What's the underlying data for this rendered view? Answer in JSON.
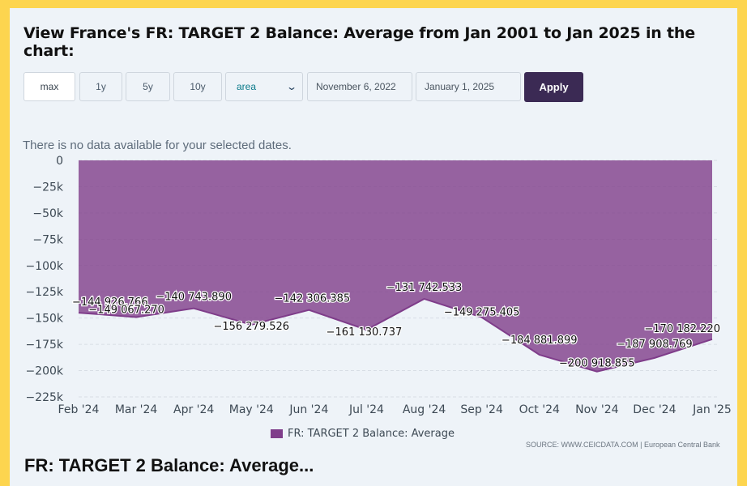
{
  "heading": "View France's FR: TARGET 2 Balance: Average from Jan 2001 to Jan 2025 in the chart:",
  "controls": {
    "range_buttons": [
      "max",
      "1y",
      "5y",
      "10y"
    ],
    "chart_type": "area",
    "start_date": "November 6, 2022",
    "end_date": "January 1, 2025",
    "apply_label": "Apply"
  },
  "no_data_message": "There is no data available for your selected dates.",
  "source_text": "SOURCE: WWW.CEICDATA.COM | European Central Bank",
  "next_section_heading": "FR: TARGET 2 Balance: Average...",
  "colors": {
    "area_fill": "#7f3d8a",
    "apply_button": "#3b2a54",
    "page_border": "#fdd54f"
  },
  "chart_data": {
    "type": "area",
    "title": "",
    "xlabel": "",
    "ylabel": "",
    "ylim": [
      -225000,
      0
    ],
    "yticks": [
      0,
      -25000,
      -50000,
      -75000,
      -100000,
      -125000,
      -150000,
      -175000,
      -200000,
      -225000
    ],
    "ytick_labels": [
      "0",
      "−25k",
      "−50k",
      "−75k",
      "−100k",
      "−125k",
      "−150k",
      "−175k",
      "−200k",
      "−225k"
    ],
    "categories": [
      "Feb '24",
      "Mar '24",
      "Apr '24",
      "May '24",
      "Jun '24",
      "Jul '24",
      "Aug '24",
      "Sep '24",
      "Oct '24",
      "Nov '24",
      "Dec '24",
      "Jan '25"
    ],
    "grid": true,
    "legend_position": "bottom-center",
    "series": [
      {
        "name": "FR: TARGET 2 Balance: Average",
        "values": [
          -144926.766,
          -149067.27,
          -140743.89,
          -156279.526,
          -142306.385,
          -161130.737,
          -131742.533,
          -149275.405,
          -184881.899,
          -200918.855,
          -187908.769,
          -170182.22
        ],
        "labels": [
          "−144 926.766",
          "−149 067.270",
          "−140 743.890",
          "−156 279.526",
          "−142 306.385",
          "−161 130.737",
          "−131 742.533",
          "−149 275.405",
          "−184 881.899",
          "−200 918.855",
          "−187 908.769",
          "−170 182.220"
        ]
      }
    ]
  }
}
